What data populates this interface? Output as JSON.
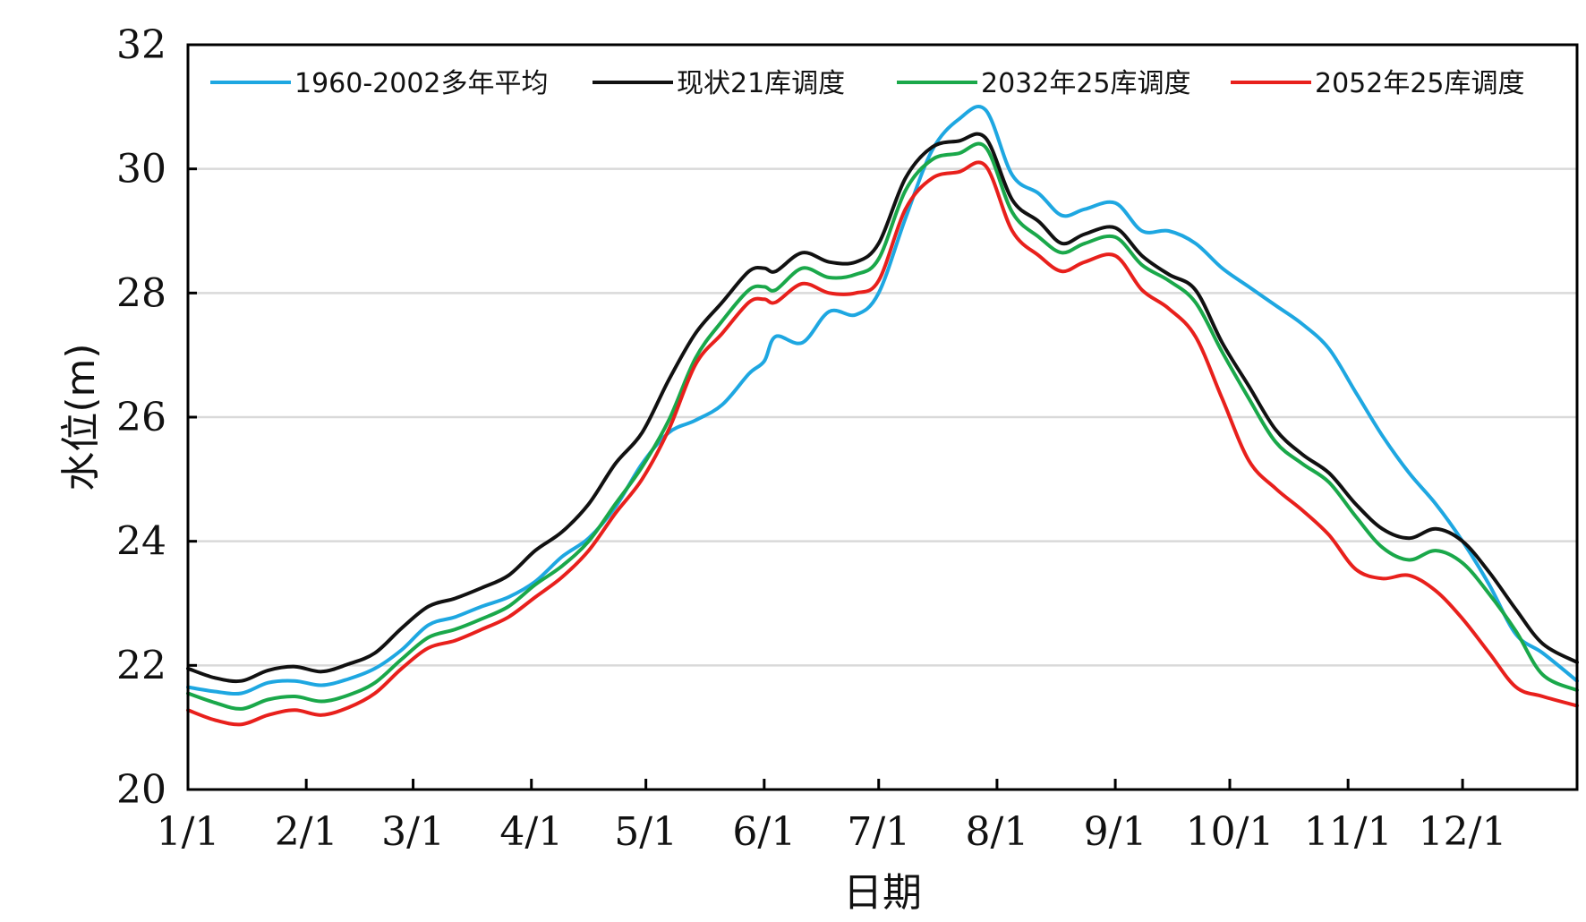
{
  "chart_data": {
    "type": "line",
    "title": "",
    "xlabel": "日期",
    "ylabel": "水位(m)",
    "ylim": [
      20,
      32
    ],
    "yticks": [
      20,
      22,
      24,
      26,
      28,
      30,
      32
    ],
    "grid": true,
    "legend_position": "top",
    "x_day_range": [
      1,
      365
    ],
    "x_ticks": [
      {
        "label": "1/1",
        "day": 1
      },
      {
        "label": "2/1",
        "day": 32
      },
      {
        "label": "3/1",
        "day": 60
      },
      {
        "label": "4/1",
        "day": 91
      },
      {
        "label": "5/1",
        "day": 121
      },
      {
        "label": "6/1",
        "day": 152
      },
      {
        "label": "7/1",
        "day": 182
      },
      {
        "label": "8/1",
        "day": 213
      },
      {
        "label": "9/1",
        "day": 244
      },
      {
        "label": "10/1",
        "day": 274
      },
      {
        "label": "11/1",
        "day": 305
      },
      {
        "label": "12/1",
        "day": 335
      }
    ],
    "series": [
      {
        "name": "1960-2002多年平均",
        "color": "#1ea7e1",
        "x": [
          1,
          8,
          15,
          22,
          29,
          36,
          43,
          50,
          57,
          64,
          71,
          78,
          85,
          92,
          99,
          106,
          113,
          120,
          127,
          134,
          141,
          148,
          152,
          155,
          162,
          169,
          176,
          182,
          189,
          196,
          203,
          210,
          217,
          224,
          230,
          236,
          244,
          251,
          258,
          265,
          272,
          279,
          286,
          293,
          300,
          307,
          314,
          321,
          328,
          335,
          342,
          349,
          356,
          365
        ],
        "values": [
          21.65,
          21.58,
          21.55,
          21.72,
          21.75,
          21.68,
          21.78,
          21.95,
          22.25,
          22.65,
          22.78,
          22.95,
          23.1,
          23.35,
          23.75,
          24.05,
          24.55,
          25.25,
          25.75,
          25.95,
          26.2,
          26.7,
          26.9,
          27.3,
          27.2,
          27.7,
          27.65,
          28.0,
          29.2,
          30.3,
          30.8,
          30.95,
          29.9,
          29.6,
          29.25,
          29.35,
          29.45,
          29.0,
          29.0,
          28.8,
          28.4,
          28.1,
          27.8,
          27.5,
          27.1,
          26.4,
          25.7,
          25.1,
          24.6,
          24.0,
          23.3,
          22.5,
          22.2,
          21.75
        ]
      },
      {
        "name": "现状21库调度",
        "color": "#111111",
        "x": [
          1,
          8,
          15,
          22,
          29,
          36,
          43,
          50,
          57,
          64,
          71,
          78,
          85,
          92,
          99,
          106,
          113,
          120,
          127,
          134,
          141,
          148,
          152,
          155,
          162,
          169,
          176,
          182,
          189,
          196,
          203,
          210,
          217,
          224,
          230,
          236,
          244,
          251,
          258,
          265,
          272,
          279,
          286,
          293,
          300,
          307,
          314,
          321,
          328,
          335,
          342,
          349,
          356,
          365
        ],
        "values": [
          21.95,
          21.8,
          21.75,
          21.92,
          21.98,
          21.9,
          22.02,
          22.2,
          22.6,
          22.95,
          23.08,
          23.25,
          23.45,
          23.85,
          24.15,
          24.6,
          25.25,
          25.75,
          26.6,
          27.35,
          27.85,
          28.35,
          28.4,
          28.35,
          28.65,
          28.5,
          28.5,
          28.8,
          29.85,
          30.35,
          30.45,
          30.5,
          29.5,
          29.15,
          28.8,
          28.95,
          29.05,
          28.6,
          28.3,
          28.05,
          27.2,
          26.5,
          25.8,
          25.4,
          25.1,
          24.6,
          24.2,
          24.05,
          24.2,
          24.0,
          23.5,
          22.9,
          22.35,
          22.05
        ]
      },
      {
        "name": "2032年25库调度",
        "color": "#1aa84a",
        "x": [
          1,
          8,
          15,
          22,
          29,
          36,
          43,
          50,
          57,
          64,
          71,
          78,
          85,
          92,
          99,
          106,
          113,
          120,
          127,
          134,
          141,
          148,
          152,
          155,
          162,
          169,
          176,
          182,
          189,
          196,
          203,
          210,
          217,
          224,
          230,
          236,
          244,
          251,
          258,
          265,
          272,
          279,
          286,
          293,
          300,
          307,
          314,
          321,
          328,
          335,
          342,
          349,
          356,
          365
        ],
        "values": [
          21.55,
          21.4,
          21.3,
          21.45,
          21.5,
          21.42,
          21.52,
          21.72,
          22.1,
          22.45,
          22.58,
          22.75,
          22.95,
          23.3,
          23.6,
          24.0,
          24.6,
          25.2,
          25.95,
          26.95,
          27.55,
          28.05,
          28.1,
          28.05,
          28.4,
          28.25,
          28.3,
          28.55,
          29.65,
          30.15,
          30.25,
          30.35,
          29.3,
          28.9,
          28.65,
          28.8,
          28.9,
          28.45,
          28.2,
          27.85,
          27.05,
          26.3,
          25.6,
          25.25,
          24.95,
          24.4,
          23.9,
          23.7,
          23.85,
          23.65,
          23.15,
          22.55,
          21.85,
          21.6
        ]
      },
      {
        "name": "2052年25库调度",
        "color": "#e8201c",
        "x": [
          1,
          8,
          15,
          22,
          29,
          36,
          43,
          50,
          57,
          64,
          71,
          78,
          85,
          92,
          99,
          106,
          113,
          120,
          127,
          134,
          141,
          148,
          152,
          155,
          162,
          169,
          176,
          182,
          189,
          196,
          203,
          210,
          217,
          224,
          230,
          236,
          244,
          251,
          258,
          265,
          272,
          279,
          286,
          293,
          300,
          307,
          314,
          321,
          328,
          335,
          342,
          349,
          356,
          365
        ],
        "values": [
          21.28,
          21.12,
          21.05,
          21.2,
          21.28,
          21.2,
          21.32,
          21.55,
          21.95,
          22.28,
          22.4,
          22.58,
          22.78,
          23.1,
          23.42,
          23.85,
          24.45,
          25.0,
          25.8,
          26.85,
          27.35,
          27.85,
          27.9,
          27.85,
          28.15,
          28.0,
          28.0,
          28.2,
          29.35,
          29.85,
          29.95,
          30.05,
          29.0,
          28.6,
          28.35,
          28.5,
          28.6,
          28.05,
          27.75,
          27.3,
          26.3,
          25.3,
          24.85,
          24.5,
          24.1,
          23.55,
          23.4,
          23.45,
          23.2,
          22.75,
          22.2,
          21.65,
          21.5,
          21.35
        ]
      }
    ]
  }
}
